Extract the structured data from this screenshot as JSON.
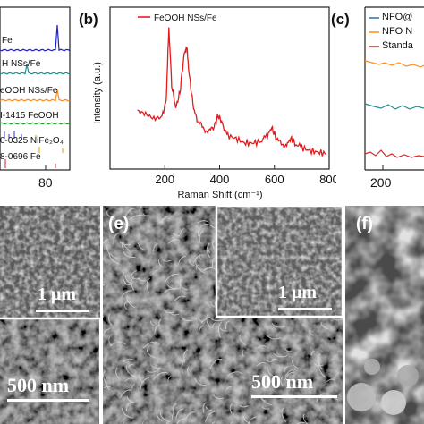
{
  "panels": {
    "a": {
      "label": "",
      "legend": [
        "Fe",
        "H NSs/Fe",
        "eOOH NSs/Fe",
        "I-1415 FeOOH",
        "0-0325 NiFe₂O₄",
        "8-0696 Fe"
      ],
      "xtick": "80",
      "colors": [
        "#1f1fd6",
        "#1f8f8f",
        "#ff8c1a",
        "#2ca02c",
        "#3333cc",
        "#cc2222"
      ]
    },
    "b": {
      "label": "(b)",
      "legend": "FeOOH NSs/Fe",
      "color": "#e41a1c"
    },
    "c": {
      "label": "(c)",
      "legend": [
        "NFO@",
        "NFO N",
        "Standa"
      ],
      "xtick": "200",
      "colors": [
        "#2a6fb0",
        "#ff8c1a",
        "#d62728",
        "#1f8f8f"
      ]
    },
    "d": {
      "label": "",
      "scale_top": "1 μm",
      "scale_bottom": "500 nm"
    },
    "e": {
      "label": "(e)",
      "scale_inset": "1 μm",
      "scale_main": "500 nm"
    },
    "f": {
      "label": "(f)"
    }
  },
  "chart_data": {
    "type": "line",
    "legend": [
      "FeOOH NSs/Fe"
    ],
    "xlabel": "Raman Shift (cm⁻¹)",
    "ylabel": "Intensity (a.u.)",
    "xlim": [
      0,
      800
    ],
    "xticks": [
      0,
      200,
      400,
      600,
      800
    ],
    "x": [
      100,
      130,
      160,
      190,
      205,
      215,
      225,
      240,
      255,
      270,
      280,
      290,
      305,
      320,
      340,
      360,
      380,
      395,
      410,
      430,
      460,
      490,
      520,
      550,
      575,
      590,
      605,
      625,
      645,
      660,
      675,
      700,
      730,
      760,
      790
    ],
    "series": [
      {
        "values": [
          0.38,
          0.36,
          0.33,
          0.34,
          0.45,
          0.92,
          0.55,
          0.4,
          0.5,
          0.74,
          0.8,
          0.6,
          0.4,
          0.31,
          0.27,
          0.24,
          0.28,
          0.35,
          0.3,
          0.22,
          0.2,
          0.17,
          0.17,
          0.18,
          0.22,
          0.27,
          0.21,
          0.16,
          0.16,
          0.2,
          0.17,
          0.14,
          0.12,
          0.11,
          0.1
        ]
      }
    ]
  }
}
